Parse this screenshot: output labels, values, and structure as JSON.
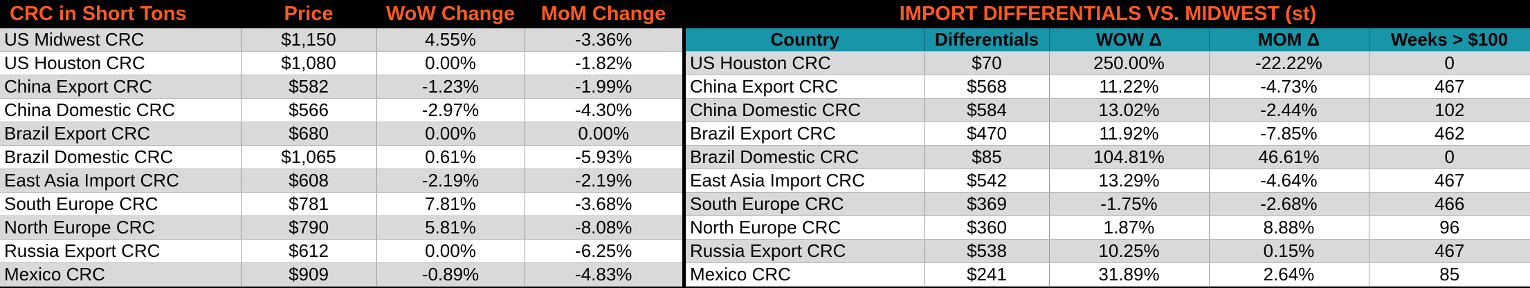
{
  "left_table": {
    "headers": [
      "CRC in Short Tons",
      "Price",
      "WoW Change",
      "MoM Change"
    ],
    "rows": [
      [
        "US Midwest CRC",
        "$1,150",
        "4.55%",
        "-3.36%"
      ],
      [
        "US Houston CRC",
        "$1,080",
        "0.00%",
        "-1.82%"
      ],
      [
        "China Export CRC",
        "$582",
        "-1.23%",
        "-1.99%"
      ],
      [
        "China Domestic CRC",
        "$566",
        "-2.97%",
        "-4.30%"
      ],
      [
        "Brazil Export CRC",
        "$680",
        "0.00%",
        "0.00%"
      ],
      [
        "Brazil Domestic CRC",
        "$1,065",
        "0.61%",
        "-5.93%"
      ],
      [
        "East Asia Import CRC",
        "$608",
        "-2.19%",
        "-2.19%"
      ],
      [
        "South Europe CRC",
        "$781",
        "7.81%",
        "-3.68%"
      ],
      [
        "North Europe CRC",
        "$790",
        "5.81%",
        "-8.08%"
      ],
      [
        "Russia Export CRC",
        "$612",
        "0.00%",
        "-6.25%"
      ],
      [
        "Mexico CRC",
        "$909",
        "-0.89%",
        "-4.83%"
      ]
    ]
  },
  "right_table": {
    "title": "IMPORT DIFFERENTIALS VS. MIDWEST (st)",
    "headers": [
      "Country",
      "Differentials",
      "WOW Δ",
      "MOM Δ",
      "Weeks > $100"
    ],
    "rows": [
      [
        "US Houston CRC",
        "$70",
        "250.00%",
        "-22.22%",
        "0"
      ],
      [
        "China Export CRC",
        "$568",
        "11.22%",
        "-4.73%",
        "467"
      ],
      [
        "China Domestic CRC",
        "$584",
        "13.02%",
        "-2.44%",
        "102"
      ],
      [
        "Brazil Export CRC",
        "$470",
        "11.92%",
        "-7.85%",
        "462"
      ],
      [
        "Brazil Domestic CRC",
        "$85",
        "104.81%",
        "46.61%",
        "0"
      ],
      [
        "East Asia Import CRC",
        "$542",
        "13.29%",
        "-4.64%",
        "467"
      ],
      [
        "South Europe CRC",
        "$369",
        "-1.75%",
        "-2.68%",
        "466"
      ],
      [
        "North Europe CRC",
        "$360",
        "1.87%",
        "8.88%",
        "96"
      ],
      [
        "Russia Export CRC",
        "$538",
        "10.25%",
        "0.15%",
        "467"
      ],
      [
        "Mexico CRC",
        "$241",
        "31.89%",
        "2.64%",
        "85"
      ]
    ]
  },
  "colors": {
    "title_text": "#ff5a1f",
    "header_fill": "#1895a8",
    "row_shade": "#d9d9d9",
    "background": "#000000"
  }
}
